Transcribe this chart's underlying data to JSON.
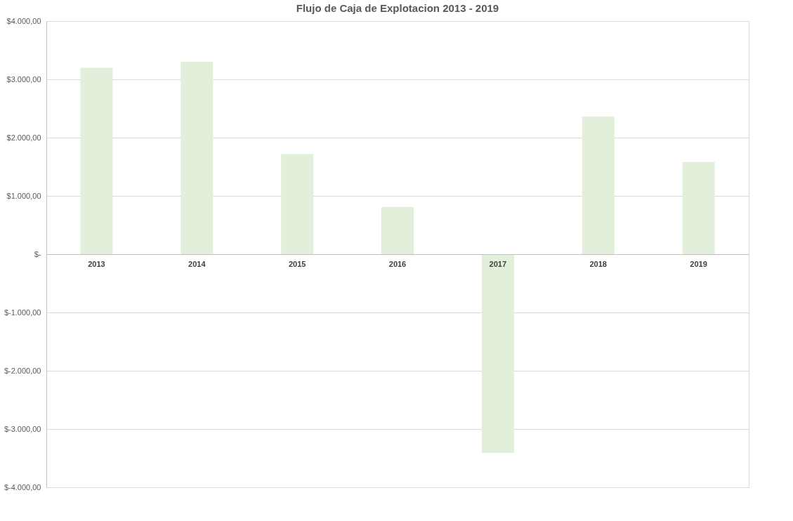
{
  "chart_data": {
    "type": "bar",
    "title": "Flujo de Caja de Explotacion 2013 - 2019",
    "categories": [
      "2013",
      "2014",
      "2015",
      "2016",
      "2017",
      "2018",
      "2019"
    ],
    "values": [
      3200,
      3300,
      1720,
      810,
      -3410,
      2360,
      1580
    ],
    "color": "#e2efda",
    "ylim": [
      -4000,
      4000
    ],
    "yticks": [
      {
        "value": -4000,
        "label": "$-4.000,00"
      },
      {
        "value": -3000,
        "label": "$-3.000,00"
      },
      {
        "value": -2000,
        "label": "$-2.000,00"
      },
      {
        "value": -1000,
        "label": "$-1.000,00"
      },
      {
        "value": 0,
        "label": "$-"
      },
      {
        "value": 1000,
        "label": "$1.000,00"
      },
      {
        "value": 2000,
        "label": "$2.000,00"
      },
      {
        "value": 3000,
        "label": "$3.000,00"
      },
      {
        "value": 4000,
        "label": "$4.000,00"
      }
    ],
    "grid": "y"
  }
}
